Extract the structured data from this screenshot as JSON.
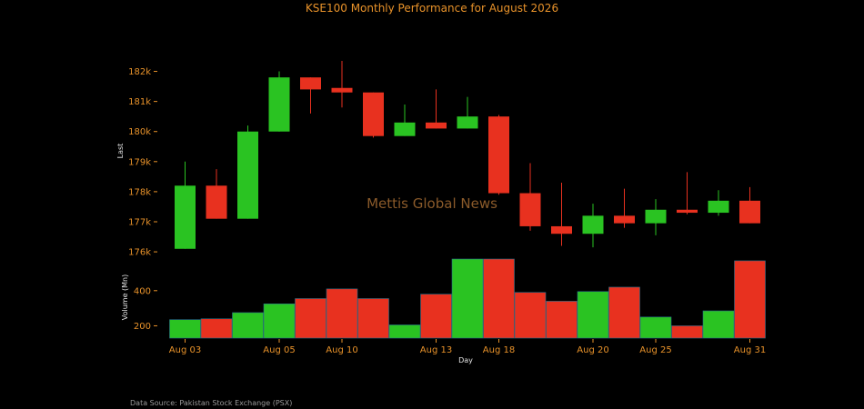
{
  "chart_data": {
    "type": "candlestick",
    "title": "KSE100 Monthly Performance for August 2026",
    "watermark": "Mettis Global News",
    "source": "Data Source: Pakistan Stock Exchange (PSX)",
    "xlabel": "Day",
    "price_ylabel": "Last",
    "volume_ylabel": "Volume (Mn)",
    "price_ylim": [
      175700,
      182500
    ],
    "price_ticks": [
      176000,
      177000,
      178000,
      179000,
      180000,
      181000,
      182000
    ],
    "price_tick_labels": [
      "176k",
      "177k",
      "178k",
      "179k",
      "180k",
      "181k",
      "182k"
    ],
    "volume_ylim": [
      130,
      580
    ],
    "volume_ticks": [
      200,
      400
    ],
    "volume_tick_labels": [
      "200",
      "400"
    ],
    "up_color": "#2ac322",
    "down_color": "#e8311f",
    "text_color": "#e8922a",
    "x_tick_labels": [
      {
        "index": 0,
        "label": "Aug 03"
      },
      {
        "index": 3,
        "label": "Aug 05"
      },
      {
        "index": 5,
        "label": "Aug 10"
      },
      {
        "index": 8,
        "label": "Aug 13"
      },
      {
        "index": 10,
        "label": "Aug 18"
      },
      {
        "index": 13,
        "label": "Aug 20"
      },
      {
        "index": 15,
        "label": "Aug 25"
      },
      {
        "index": 18,
        "label": "Aug 31"
      }
    ],
    "candles": [
      {
        "open": 176100,
        "close": 178200,
        "high": 179000,
        "low": 176100,
        "volume": 235
      },
      {
        "open": 178200,
        "close": 177100,
        "high": 178750,
        "low": 177100,
        "volume": 240
      },
      {
        "open": 177100,
        "close": 180000,
        "high": 180200,
        "low": 177100,
        "volume": 275
      },
      {
        "open": 180000,
        "close": 181800,
        "high": 182000,
        "low": 180000,
        "volume": 325
      },
      {
        "open": 181800,
        "close": 181400,
        "high": 181800,
        "low": 180600,
        "volume": 355
      },
      {
        "open": 181450,
        "close": 181300,
        "high": 182350,
        "low": 180800,
        "volume": 410
      },
      {
        "open": 181300,
        "close": 179850,
        "high": 181300,
        "low": 179800,
        "volume": 355
      },
      {
        "open": 179850,
        "close": 180300,
        "high": 180900,
        "low": 179850,
        "volume": 205
      },
      {
        "open": 180300,
        "close": 180100,
        "high": 181400,
        "low": 180100,
        "volume": 380
      },
      {
        "open": 180100,
        "close": 180500,
        "high": 181150,
        "low": 180100,
        "volume": 580
      },
      {
        "open": 180500,
        "close": 177950,
        "high": 180550,
        "low": 177900,
        "volume": 580
      },
      {
        "open": 177950,
        "close": 176850,
        "high": 178950,
        "low": 176700,
        "volume": 390
      },
      {
        "open": 176850,
        "close": 176600,
        "high": 178300,
        "low": 176200,
        "volume": 340
      },
      {
        "open": 176600,
        "close": 177200,
        "high": 177600,
        "low": 176150,
        "volume": 395
      },
      {
        "open": 177200,
        "close": 176950,
        "high": 178100,
        "low": 176800,
        "volume": 420
      },
      {
        "open": 176950,
        "close": 177400,
        "high": 177750,
        "low": 176550,
        "volume": 250
      },
      {
        "open": 177400,
        "close": 177300,
        "high": 178650,
        "low": 177250,
        "volume": 200
      },
      {
        "open": 177300,
        "close": 177700,
        "high": 178050,
        "low": 177200,
        "volume": 285
      },
      {
        "open": 177700,
        "close": 176950,
        "high": 178150,
        "low": 176950,
        "volume": 570
      }
    ]
  }
}
